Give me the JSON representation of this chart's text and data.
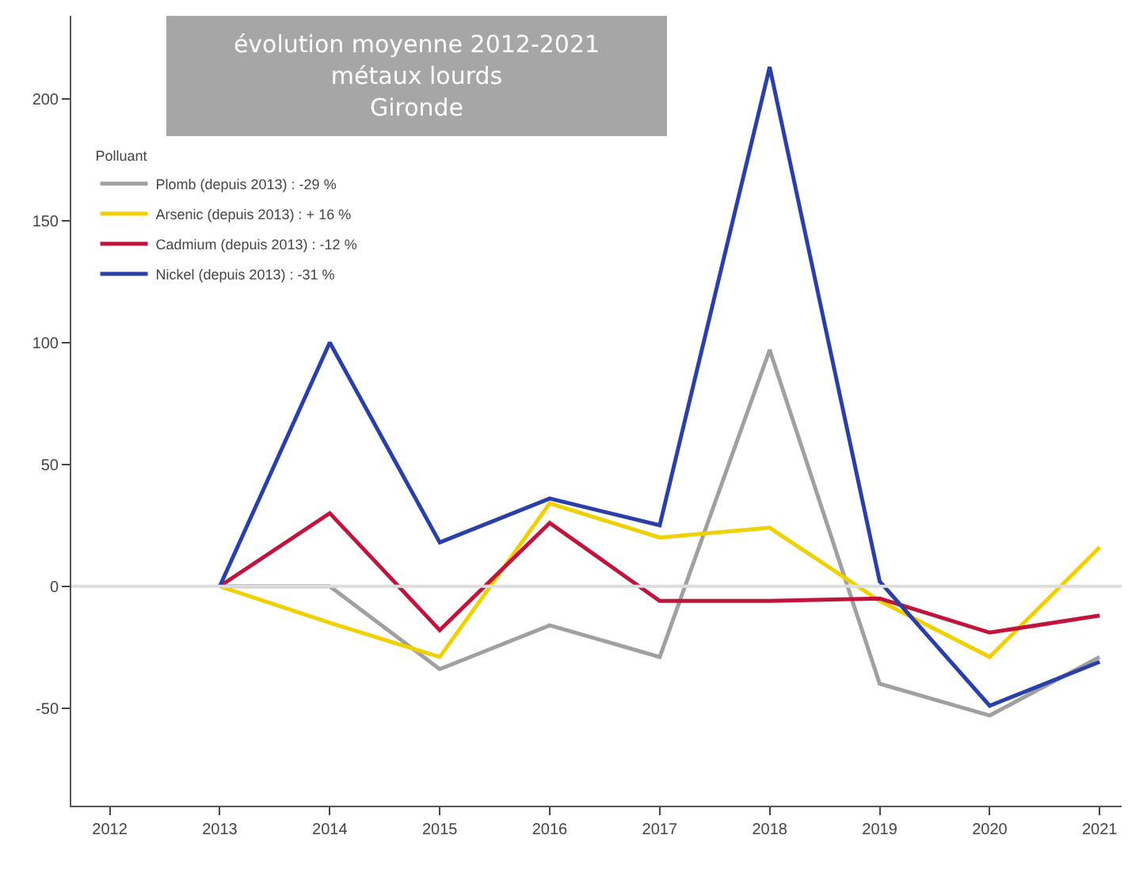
{
  "chart_data": {
    "type": "line",
    "title": "évolution moyenne 2012-2021\nmétaux lourds\nGironde",
    "legend_title": "Polluant",
    "legend": "top left",
    "x": [
      2013,
      2014,
      2015,
      2016,
      2017,
      2018,
      2019,
      2020,
      2021
    ],
    "xlim": [
      2011.65,
      2021.2
    ],
    "xticks": [
      2012,
      2013,
      2014,
      2015,
      2016,
      2017,
      2018,
      2019,
      2020,
      2021
    ],
    "ylim": [
      -90,
      234
    ],
    "yticks": [
      -50,
      0,
      50,
      100,
      150,
      200
    ],
    "series": [
      {
        "name": "Plomb (depuis 2013) : -29 %",
        "color": "#a0a0a0",
        "values": [
          0,
          0,
          -34,
          -16,
          -29,
          97,
          -40,
          -53,
          -29
        ]
      },
      {
        "name": "Arsenic (depuis 2013) : + 16 %",
        "color": "#f0d000",
        "values": [
          0,
          -15,
          -29,
          34,
          20,
          24,
          -6,
          -29,
          16
        ]
      },
      {
        "name": "Cadmium (depuis 2013) : -12 %",
        "color": "#c0143c",
        "values": [
          0,
          30,
          -18,
          26,
          -6,
          -6,
          -5,
          -19,
          -12
        ]
      },
      {
        "name": "Nickel (depuis 2013) : -31 %",
        "color": "#2b3fa8",
        "values": [
          0,
          100,
          18,
          36,
          25,
          213,
          2,
          -49,
          -31
        ]
      }
    ],
    "ref_lines": [
      {
        "axis": "y",
        "value": 0,
        "color": "#dddddd"
      }
    ]
  }
}
